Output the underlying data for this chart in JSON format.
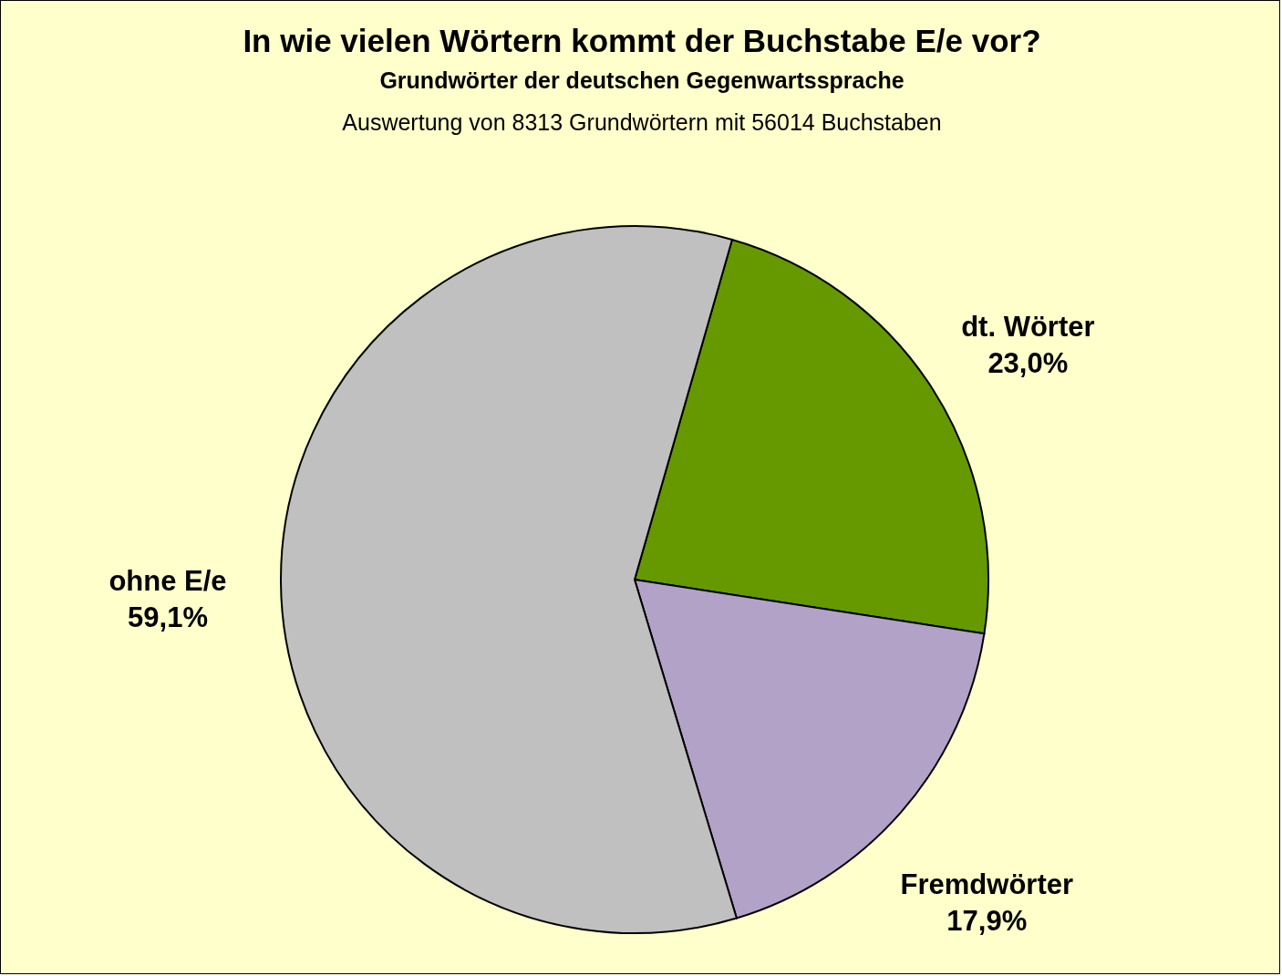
{
  "chart_data": {
    "type": "pie",
    "title": "In wie vielen Wörtern kommt der Buchstabe E/e vor?",
    "subtitle": "Grundwörter der deutschen Gegenwartssprache",
    "annotations": [
      "Auswertung von 8313 Grundwörtern mit 56014 Buchstaben"
    ],
    "categories": [
      "dt. Wörter",
      "Fremdwörter",
      "ohne E/e"
    ],
    "values": [
      23.0,
      17.9,
      59.1
    ],
    "colors": [
      "#669900",
      "#b3a2c7",
      "#c0c0c0"
    ],
    "value_labels": [
      "23,0%",
      "17,9%",
      "59,1%"
    ]
  }
}
